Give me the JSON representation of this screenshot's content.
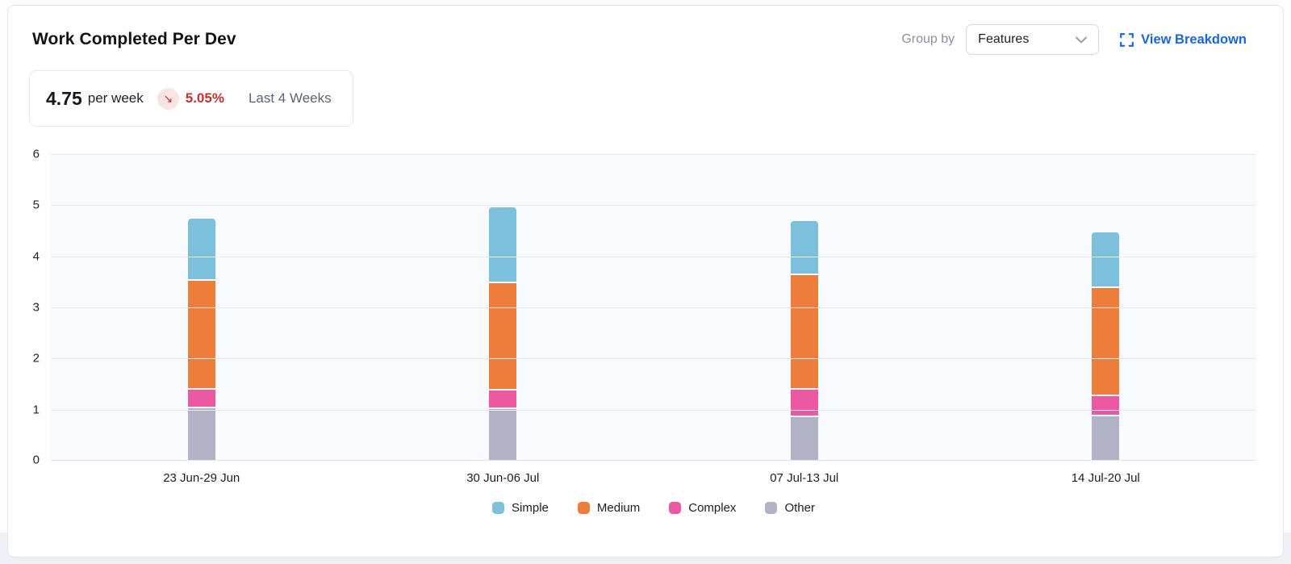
{
  "header": {
    "title": "Work Completed Per Dev",
    "group_by_label": "Group by",
    "group_by_value": "Features",
    "group_by_options_visible": [
      "Features"
    ],
    "view_breakdown_label": "View Breakdown"
  },
  "stat": {
    "value": "4.75",
    "unit": "per week",
    "delta": "5.05%",
    "delta_direction": "down",
    "period": "Last 4 Weeks"
  },
  "icons": {
    "trend_down": "↘"
  },
  "colors": {
    "link_blue": "#1b66d9",
    "delta_red": "#c62f2f",
    "delta_badge_bg": "#f9e3e3",
    "plot_bg": "#f8fafd",
    "gridline": "#e9ebef",
    "card_border": "#e3e6ec"
  },
  "chart_data": {
    "type": "bar",
    "stacked": true,
    "title": "Work Completed Per Dev",
    "xlabel": "",
    "ylabel": "",
    "ylim": [
      0,
      6
    ],
    "yticks": [
      0,
      1,
      2,
      3,
      4,
      5,
      6
    ],
    "grid": true,
    "legend_position": "bottom",
    "stack_order_top_to_bottom": [
      "Simple",
      "Medium",
      "Complex",
      "Other"
    ],
    "categories": [
      "23 Jun-29 Jun",
      "30 Jun-06 Jul",
      "07 Jul-13 Jul",
      "14 Jul-20 Jul"
    ],
    "series": [
      {
        "name": "Simple",
        "color": "#7CC0DB",
        "values": [
          1.18,
          1.45,
          1.02,
          1.05
        ]
      },
      {
        "name": "Medium",
        "color": "#EE7C3B",
        "values": [
          2.13,
          2.1,
          2.25,
          2.12
        ]
      },
      {
        "name": "Complex",
        "color": "#EC58A1",
        "values": [
          0.37,
          0.36,
          0.53,
          0.39
        ]
      },
      {
        "name": "Other",
        "color": "#B2B2C6",
        "values": [
          1.04,
          1.03,
          0.87,
          0.89
        ]
      }
    ],
    "totals": [
      4.72,
      4.94,
      4.67,
      4.45
    ]
  }
}
